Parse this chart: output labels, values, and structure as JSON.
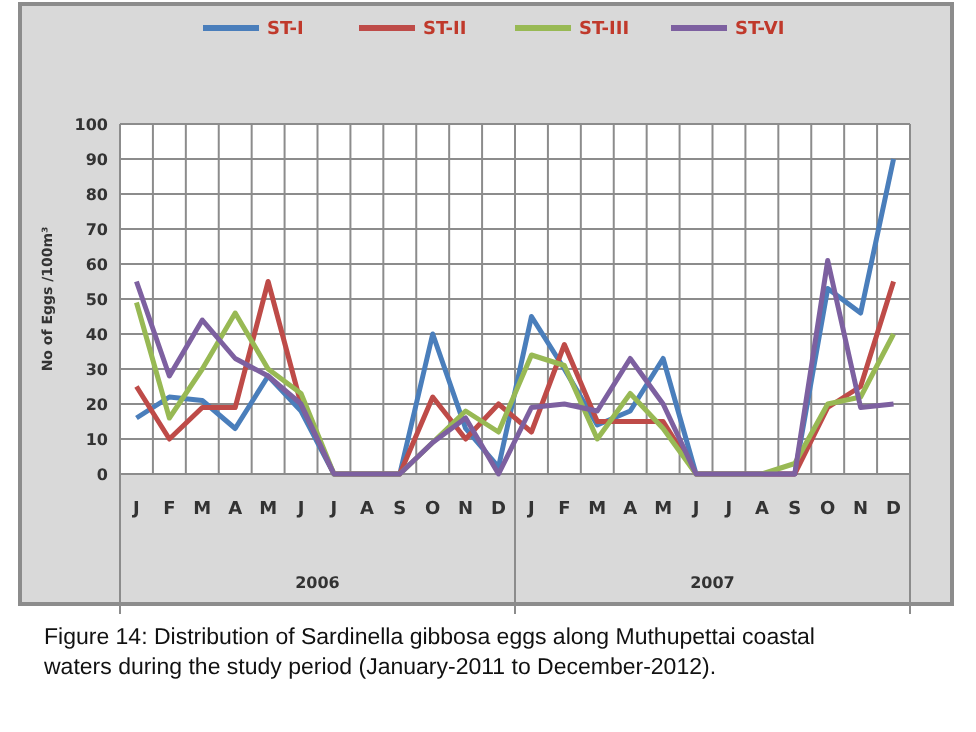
{
  "chart_data": {
    "type": "line",
    "ylabel": "No of Eggs /100m³",
    "categories": [
      "J",
      "F",
      "M",
      "A",
      "M",
      "J",
      "J",
      "A",
      "S",
      "O",
      "N",
      "D",
      "J",
      "F",
      "M",
      "A",
      "M",
      "J",
      "J",
      "A",
      "S",
      "O",
      "N",
      "D"
    ],
    "series": [
      {
        "name": "ST-I",
        "color": "#4a7ebb",
        "values": [
          16,
          22,
          21,
          13,
          28,
          18,
          0,
          0,
          0,
          40,
          13,
          2,
          45,
          30,
          14,
          18,
          33,
          0,
          0,
          0,
          0,
          53,
          46,
          90
        ]
      },
      {
        "name": "ST-II",
        "color": "#be4b48",
        "values": [
          25,
          10,
          19,
          19,
          55,
          20,
          0,
          0,
          0,
          22,
          10,
          20,
          12,
          37,
          15,
          15,
          15,
          0,
          0,
          0,
          0,
          19,
          25,
          55
        ]
      },
      {
        "name": "ST-III",
        "color": "#98b954",
        "values": [
          49,
          16,
          30,
          46,
          30,
          23,
          0,
          0,
          0,
          9,
          18,
          12,
          34,
          31,
          10,
          23,
          13,
          0,
          0,
          0,
          3,
          20,
          22,
          40
        ]
      },
      {
        "name": "ST-VI",
        "color": "#7d60a0",
        "values": [
          55,
          28,
          44,
          33,
          28,
          20,
          0,
          0,
          0,
          9,
          16,
          0,
          19,
          20,
          18,
          33,
          20,
          0,
          0,
          0,
          0,
          61,
          19,
          20
        ]
      }
    ],
    "ylim": [
      0,
      100
    ],
    "yticks": [
      0,
      10,
      20,
      30,
      40,
      50,
      60,
      70,
      80,
      90,
      100
    ],
    "grid": true,
    "legend": "top",
    "marker": "none",
    "line_style": "solid",
    "annotations": [
      "2006",
      "2007",
      "Figure 14: Distribution of Sardinella gibbosa eggs along Muthupettai coastal waters during the study period (January-2011 to December-2012)."
    ]
  }
}
